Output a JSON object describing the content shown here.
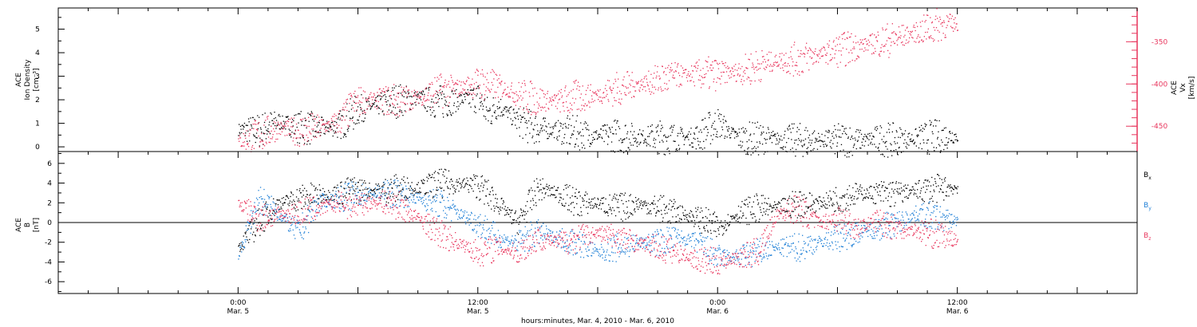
{
  "colors": {
    "black": "#000000",
    "pink": "#e8365d",
    "blue": "#1e7fd6"
  },
  "chart_data": [
    {
      "type": "scatter",
      "panel": "top",
      "ylabel_left": [
        "ACE",
        "Ion Density",
        "[cm⁻³]"
      ],
      "ylabel_right": [
        "ACE",
        "Vx",
        "[km/s]"
      ],
      "y_left_ticks": [
        0,
        1,
        2,
        3,
        4,
        5
      ],
      "ylim_left": [
        -0.2,
        5.9
      ],
      "y_right_ticks": [
        -450,
        -400,
        -350
      ],
      "ylim_right": [
        -480,
        -310
      ],
      "series": [
        {
          "axis": "left",
          "color": "black",
          "points": [
            [
              0,
              0.75
            ],
            [
              2,
              0.7
            ],
            [
              4,
              1.1
            ],
            [
              6,
              0.85
            ],
            [
              8,
              0.8
            ],
            [
              10,
              0.9
            ],
            [
              12,
              1.6
            ],
            [
              14,
              1.8
            ],
            [
              16,
              2.0
            ],
            [
              18,
              2.1
            ],
            [
              20,
              1.9
            ],
            [
              22,
              2.0
            ],
            [
              24,
              2.1
            ],
            [
              25,
              1.4
            ],
            [
              26,
              1.8
            ],
            [
              28,
              1.1
            ],
            [
              29,
              0.9
            ],
            [
              30,
              0.8
            ],
            [
              32,
              0.7
            ],
            [
              34,
              0.6
            ],
            [
              36,
              0.5
            ],
            [
              38,
              0.5
            ],
            [
              40,
              0.45
            ],
            [
              42,
              0.45
            ],
            [
              44,
              0.4
            ],
            [
              46,
              0.45
            ],
            [
              48,
              1.05
            ],
            [
              50,
              0.4
            ],
            [
              52,
              0.35
            ],
            [
              54,
              0.35
            ],
            [
              56,
              0.3
            ],
            [
              58,
              0.3
            ],
            [
              60,
              0.3
            ],
            [
              62,
              0.3
            ],
            [
              64,
              0.35
            ],
            [
              66,
              0.3
            ],
            [
              68,
              0.4
            ],
            [
              70,
              0.45
            ],
            [
              72,
              0.5
            ]
          ]
        },
        {
          "axis": "right",
          "color": "pink",
          "points": [
            [
              0,
              -468
            ],
            [
              2,
              -460
            ],
            [
              4,
              -452
            ],
            [
              6,
              -455
            ],
            [
              8,
              -452
            ],
            [
              10,
              -445
            ],
            [
              12,
              -420
            ],
            [
              14,
              -418
            ],
            [
              16,
              -420
            ],
            [
              18,
              -415
            ],
            [
              20,
              -408
            ],
            [
              22,
              -405
            ],
            [
              24,
              -398
            ],
            [
              26,
              -402
            ],
            [
              28,
              -412
            ],
            [
              30,
              -418
            ],
            [
              32,
              -420
            ],
            [
              34,
              -415
            ],
            [
              36,
              -412
            ],
            [
              38,
              -405
            ],
            [
              40,
              -400
            ],
            [
              42,
              -395
            ],
            [
              44,
              -390
            ],
            [
              46,
              -388
            ],
            [
              48,
              -388
            ],
            [
              50,
              -385
            ],
            [
              52,
              -378
            ],
            [
              54,
              -372
            ],
            [
              56,
              -370
            ],
            [
              58,
              -365
            ],
            [
              60,
              -360
            ],
            [
              62,
              -355
            ],
            [
              64,
              -350
            ],
            [
              66,
              -345
            ],
            [
              68,
              -338
            ],
            [
              70,
              -330
            ],
            [
              72,
              -328
            ]
          ]
        }
      ]
    },
    {
      "type": "scatter",
      "panel": "bottom",
      "ylabel_left": [
        "ACE",
        "B",
        "[nT]"
      ],
      "y_left_ticks": [
        -6,
        -4,
        -2,
        0,
        2,
        4,
        6
      ],
      "ylim_left": [
        -7.2,
        7.2
      ],
      "legend_position": "right",
      "series": [
        {
          "name": "Bx",
          "legend": "B",
          "legend_sub": "x",
          "color": "black",
          "points": [
            [
              0,
              -2.5
            ],
            [
              2,
              0
            ],
            [
              4,
              2
            ],
            [
              6,
              2.5
            ],
            [
              8,
              2.8
            ],
            [
              10,
              3
            ],
            [
              12,
              3.4
            ],
            [
              14,
              3.3
            ],
            [
              16,
              3.5
            ],
            [
              18,
              3.6
            ],
            [
              20,
              4
            ],
            [
              22,
              4
            ],
            [
              24,
              3.8
            ],
            [
              26,
              2
            ],
            [
              28,
              0
            ],
            [
              30,
              3.5
            ],
            [
              32,
              3
            ],
            [
              34,
              2
            ],
            [
              36,
              2
            ],
            [
              38,
              1.5
            ],
            [
              40,
              2
            ],
            [
              42,
              1.5
            ],
            [
              44,
              1
            ],
            [
              46,
              0.5
            ],
            [
              48,
              -0.5
            ],
            [
              50,
              1
            ],
            [
              52,
              1.5
            ],
            [
              54,
              1.5
            ],
            [
              56,
              2
            ],
            [
              58,
              2
            ],
            [
              60,
              2.5
            ],
            [
              62,
              3
            ],
            [
              64,
              3
            ],
            [
              66,
              3
            ],
            [
              68,
              3.3
            ],
            [
              70,
              3.5
            ],
            [
              72,
              3.6
            ]
          ]
        },
        {
          "name": "By",
          "legend": "B",
          "legend_sub": "y",
          "color": "blue",
          "points": [
            [
              0,
              -3.5
            ],
            [
              2,
              2.5
            ],
            [
              4,
              1
            ],
            [
              6,
              -1
            ],
            [
              8,
              2
            ],
            [
              10,
              2.5
            ],
            [
              12,
              2.8
            ],
            [
              14,
              3
            ],
            [
              16,
              3
            ],
            [
              18,
              2.5
            ],
            [
              20,
              2
            ],
            [
              22,
              1
            ],
            [
              24,
              0
            ],
            [
              26,
              -1.5
            ],
            [
              28,
              -2
            ],
            [
              30,
              -1
            ],
            [
              32,
              -1.5
            ],
            [
              34,
              -2
            ],
            [
              36,
              -3
            ],
            [
              38,
              -2.5
            ],
            [
              40,
              -2
            ],
            [
              42,
              -2
            ],
            [
              44,
              -1.5
            ],
            [
              46,
              -2
            ],
            [
              48,
              -3.5
            ],
            [
              50,
              -3.5
            ],
            [
              52,
              -3
            ],
            [
              54,
              -2.5
            ],
            [
              56,
              -2.5
            ],
            [
              58,
              -2
            ],
            [
              60,
              -1.5
            ],
            [
              62,
              -1
            ],
            [
              64,
              -0.5
            ],
            [
              66,
              0
            ],
            [
              68,
              1
            ],
            [
              70,
              0.5
            ],
            [
              72,
              0.2
            ]
          ]
        },
        {
          "name": "Bz",
          "legend": "B",
          "legend_sub": "z",
          "color": "pink",
          "points": [
            [
              0,
              2
            ],
            [
              2,
              0.5
            ],
            [
              4,
              0.8
            ],
            [
              6,
              1
            ],
            [
              8,
              1.5
            ],
            [
              10,
              2
            ],
            [
              12,
              1.8
            ],
            [
              14,
              2.2
            ],
            [
              16,
              1.8
            ],
            [
              18,
              0.5
            ],
            [
              20,
              -1
            ],
            [
              22,
              -2
            ],
            [
              24,
              -3
            ],
            [
              26,
              -2.5
            ],
            [
              28,
              -3
            ],
            [
              30,
              -1.5
            ],
            [
              32,
              -2
            ],
            [
              34,
              -1.5
            ],
            [
              36,
              -1
            ],
            [
              38,
              -1.5
            ],
            [
              40,
              -2
            ],
            [
              42,
              -2.5
            ],
            [
              44,
              -3
            ],
            [
              46,
              -3.8
            ],
            [
              48,
              -4
            ],
            [
              50,
              -3.5
            ],
            [
              52,
              -3
            ],
            [
              54,
              1
            ],
            [
              56,
              1.5
            ],
            [
              58,
              0
            ],
            [
              60,
              0.5
            ],
            [
              62,
              -0.5
            ],
            [
              64,
              0.3
            ],
            [
              66,
              -0.5
            ],
            [
              68,
              -0.8
            ],
            [
              70,
              -1.2
            ],
            [
              72,
              -1.8
            ]
          ]
        }
      ]
    },
    {
      "type": "axis",
      "xlabel": "hours:minutes, Mar. 4, 2010 - Mar. 6, 2010",
      "xlim_hours": [
        -18,
        90
      ],
      "x_ticks": [
        {
          "hours": 0,
          "time": "0:00",
          "date": "Mar. 5"
        },
        {
          "hours": 24,
          "time": "12:00",
          "date": "Mar. 5"
        },
        {
          "hours": 48,
          "time": "0:00",
          "date": "Mar. 6"
        },
        {
          "hours": 72,
          "time": "12:00",
          "date": "Mar. 6"
        }
      ]
    }
  ]
}
